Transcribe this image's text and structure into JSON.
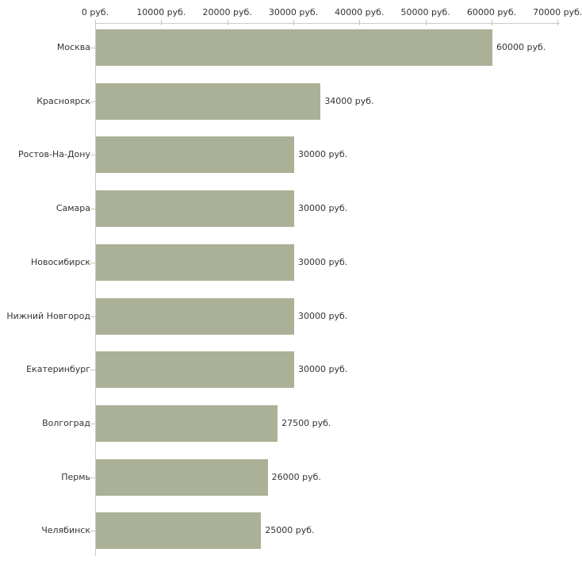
{
  "chart_data": {
    "type": "bar",
    "orientation": "horizontal",
    "title": "",
    "categories": [
      "Москва",
      "Красноярск",
      "Ростов-На-Дону",
      "Самара",
      "Новосибирск",
      "Нижний Новгород",
      "Екатеринбург",
      "Волгоград",
      "Пермь",
      "Челябинск"
    ],
    "values": [
      60000,
      34000,
      30000,
      30000,
      30000,
      30000,
      30000,
      27500,
      26000,
      25000
    ],
    "value_labels": [
      "60000 руб.",
      "34000 руб.",
      "30000 руб.",
      "30000 руб.",
      "30000 руб.",
      "30000 руб.",
      "30000 руб.",
      "27500 руб.",
      "26000 руб.",
      "25000 руб."
    ],
    "x_axis": {
      "position": "top",
      "min": 0,
      "max": 70000,
      "unit": "руб.",
      "tick_values": [
        0,
        10000,
        20000,
        30000,
        40000,
        50000,
        60000,
        70000
      ],
      "tick_labels": [
        "0 руб.",
        "10000 руб.",
        "20000 руб.",
        "30000 руб.",
        "40000 руб.",
        "50000 руб.",
        "60000 руб.",
        "70000 руб."
      ]
    },
    "ylabel": "",
    "xlabel": "",
    "grid": false,
    "legend": false,
    "colors": {
      "bar": "#aab196",
      "axis_line": "#cccccc",
      "tick_mark": "#c8c79d",
      "text": "#333333",
      "background": "#ffffff"
    }
  }
}
